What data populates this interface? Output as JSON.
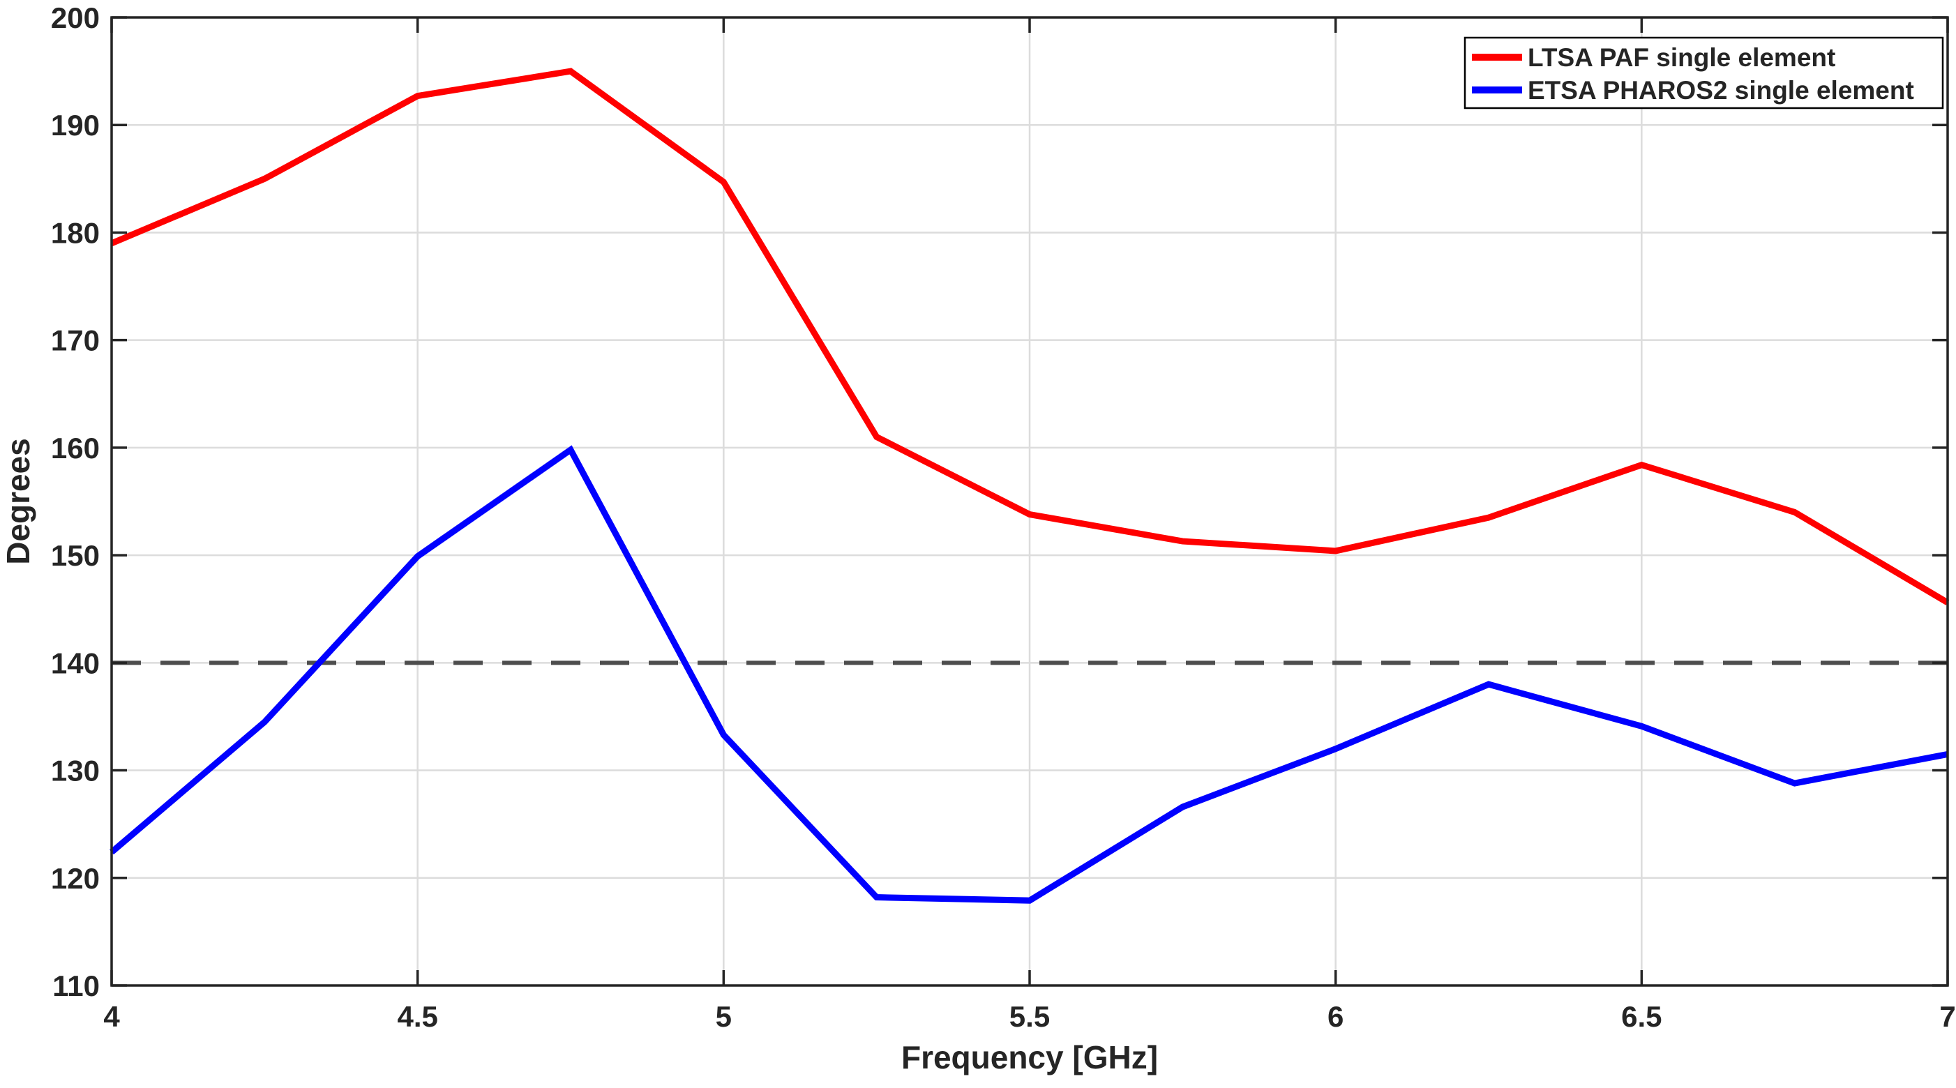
{
  "chart_data": {
    "type": "line",
    "xlabel": "Frequency [GHz]",
    "ylabel": "Degrees",
    "xlim": [
      4,
      7
    ],
    "ylim": [
      110,
      200
    ],
    "xticks": [
      4,
      4.5,
      5,
      5.5,
      6,
      6.5,
      7
    ],
    "xtick_labels": [
      "4",
      "4.5",
      "5",
      "5.5",
      "6",
      "6.5",
      "7"
    ],
    "yticks": [
      110,
      120,
      130,
      140,
      150,
      160,
      170,
      180,
      190,
      200
    ],
    "ytick_labels": [
      "110",
      "120",
      "130",
      "140",
      "150",
      "160",
      "170",
      "180",
      "190",
      "200"
    ],
    "grid": true,
    "legend_position": "top-right",
    "x": [
      4,
      4.25,
      4.5,
      4.75,
      5,
      5.25,
      5.5,
      5.75,
      6,
      6.25,
      6.5,
      6.75,
      7
    ],
    "series": [
      {
        "name": "LTSA PAF single element",
        "color": "#ff0000",
        "values": [
          179.0,
          185.0,
          192.7,
          195.0,
          184.7,
          161.0,
          153.8,
          151.3,
          150.4,
          153.5,
          158.4,
          154.0,
          145.6
        ]
      },
      {
        "name": "ETSA PHAROS2 single element",
        "color": "#0000ff",
        "values": [
          122.4,
          134.5,
          149.9,
          159.8,
          133.3,
          118.2,
          117.9,
          126.6,
          132.0,
          138.0,
          134.1,
          128.8,
          131.5
        ]
      }
    ],
    "reference_line": {
      "value": 140,
      "style": "dashed",
      "color": "#4d4d4d"
    }
  },
  "style_colors": {
    "axis": "#252525",
    "grid": "#dcdcdc",
    "background": "#ffffff",
    "legend_border": "#000000"
  }
}
